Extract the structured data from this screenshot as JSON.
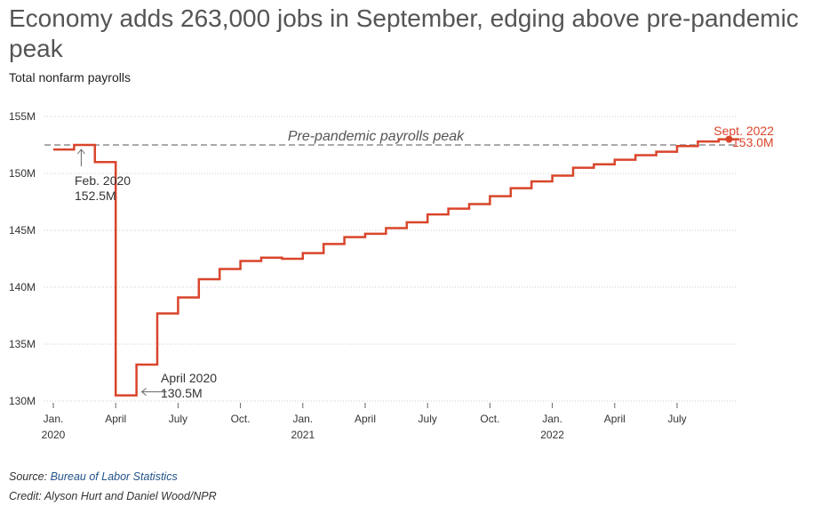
{
  "header": {
    "title": "Economy adds 263,000 jobs in September, edging above pre-pandemic peak",
    "subtitle": "Total nonfarm payrolls"
  },
  "footer": {
    "source_prefix": "Source: ",
    "source_link": "Bureau of Labor Statistics",
    "credit": "Credit: Alyson Hurt and Daniel Wood/NPR"
  },
  "colors": {
    "line": "#d9452b",
    "grid": "#cccccc",
    "peak_line": "#aaaaaa",
    "text": "#333333"
  },
  "chart_data": {
    "type": "line",
    "step": true,
    "ylim": [
      130,
      155
    ],
    "y_ticks": [
      {
        "value": 130,
        "label": "130M"
      },
      {
        "value": 135,
        "label": "135M"
      },
      {
        "value": 140,
        "label": "140M"
      },
      {
        "value": 145,
        "label": "145M"
      },
      {
        "value": 150,
        "label": "150M"
      },
      {
        "value": 155,
        "label": "155M"
      }
    ],
    "x_ticks": [
      {
        "date": "2020-01",
        "label": "Jan.",
        "year": "2020"
      },
      {
        "date": "2020-04",
        "label": "April",
        "year": ""
      },
      {
        "date": "2020-07",
        "label": "July",
        "year": ""
      },
      {
        "date": "2020-10",
        "label": "Oct.",
        "year": ""
      },
      {
        "date": "2021-01",
        "label": "Jan.",
        "year": "2021"
      },
      {
        "date": "2021-04",
        "label": "April",
        "year": ""
      },
      {
        "date": "2021-07",
        "label": "July",
        "year": ""
      },
      {
        "date": "2021-10",
        "label": "Oct.",
        "year": ""
      },
      {
        "date": "2022-01",
        "label": "Jan.",
        "year": "2022"
      },
      {
        "date": "2022-04",
        "label": "April",
        "year": ""
      },
      {
        "date": "2022-07",
        "label": "July",
        "year": ""
      }
    ],
    "series": [
      {
        "x": [
          "2020-01",
          "2020-02",
          "2020-03",
          "2020-04",
          "2020-05",
          "2020-06",
          "2020-07",
          "2020-08",
          "2020-09",
          "2020-10",
          "2020-11",
          "2020-12",
          "2021-01",
          "2021-02",
          "2021-03",
          "2021-04",
          "2021-05",
          "2021-06",
          "2021-07",
          "2021-08",
          "2021-09",
          "2021-10",
          "2021-11",
          "2021-12",
          "2022-01",
          "2022-02",
          "2022-03",
          "2022-04",
          "2022-05",
          "2022-06",
          "2022-07",
          "2022-08",
          "2022-09"
        ],
        "values": [
          152.1,
          152.5,
          151.0,
          130.5,
          133.2,
          137.7,
          139.1,
          140.7,
          141.6,
          142.3,
          142.6,
          142.5,
          143.0,
          143.8,
          144.4,
          144.7,
          145.2,
          145.7,
          146.4,
          146.9,
          147.3,
          148.0,
          148.7,
          149.3,
          149.8,
          150.5,
          150.8,
          151.2,
          151.6,
          151.9,
          152.4,
          152.8,
          153.0
        ]
      }
    ],
    "reference_line": {
      "value": 152.5,
      "label": "Pre-pandemic payrolls peak"
    },
    "annotations": [
      {
        "date": "2020-02",
        "value": 152.5,
        "label": "Feb. 2020",
        "value_label": "152.5M"
      },
      {
        "date": "2020-04",
        "value": 130.5,
        "label": "April 2020",
        "value_label": "130.5M"
      },
      {
        "date": "2022-09",
        "value": 153.0,
        "label": "Sept. 2022",
        "value_label": "153.0M"
      }
    ],
    "grid": true
  }
}
